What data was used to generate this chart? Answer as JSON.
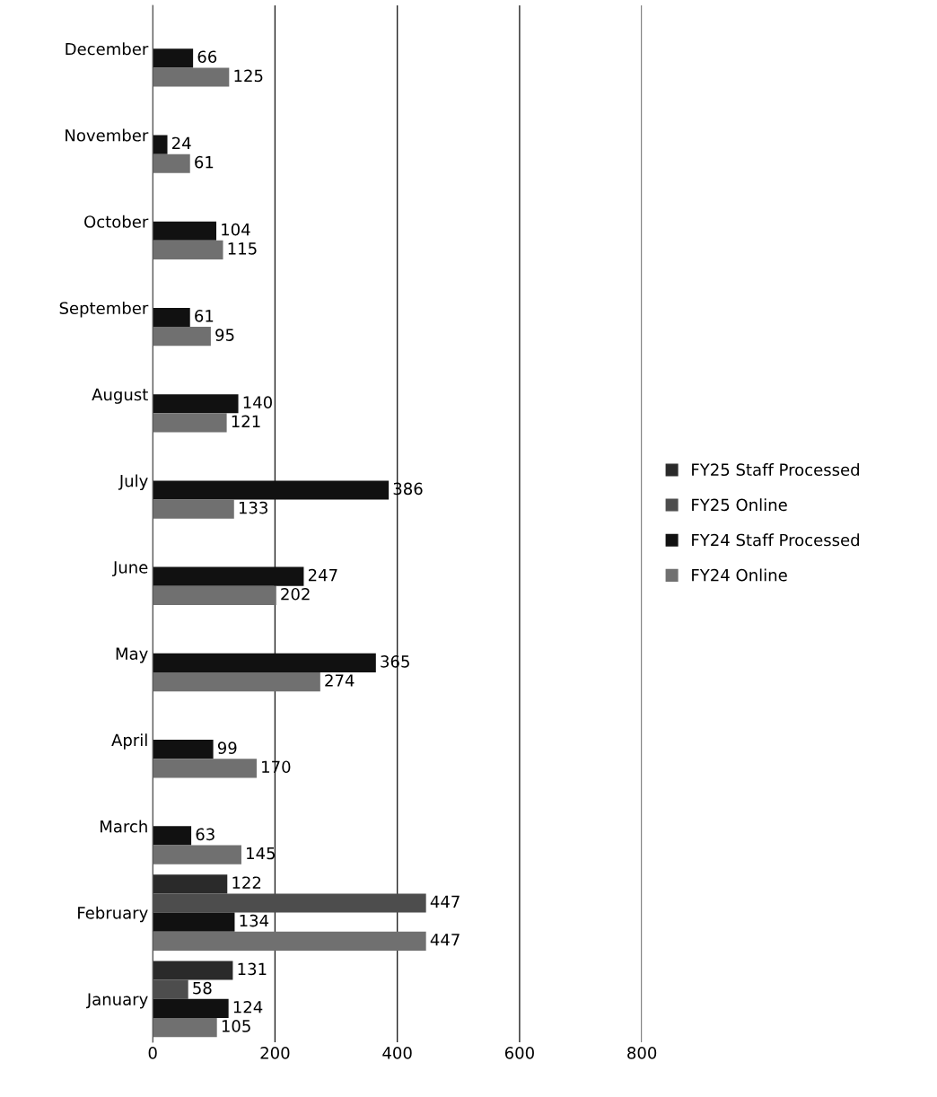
{
  "chart_data": {
    "type": "bar",
    "orientation": "horizontal",
    "data_labels": true,
    "grid": "x",
    "legend": "right",
    "categories": [
      "December",
      "November",
      "October",
      "September",
      "August",
      "July",
      "June",
      "May",
      "April",
      "March",
      "February",
      "January"
    ],
    "series": [
      {
        "name": "FY25 Staff Processed",
        "color": "#2a2a2a",
        "values": [
          null,
          null,
          null,
          null,
          null,
          null,
          null,
          null,
          null,
          null,
          122,
          131
        ]
      },
      {
        "name": "FY25 Online",
        "color": "#4d4d4d",
        "values": [
          null,
          null,
          null,
          null,
          null,
          null,
          null,
          null,
          null,
          null,
          447,
          58
        ]
      },
      {
        "name": "FY24 Staff Processed",
        "color": "#111111",
        "values": [
          66,
          24,
          104,
          61,
          140,
          386,
          247,
          365,
          99,
          63,
          134,
          124
        ]
      },
      {
        "name": "FY24 Online",
        "color": "#707070",
        "values": [
          125,
          61,
          115,
          95,
          121,
          133,
          202,
          274,
          170,
          145,
          447,
          105
        ]
      }
    ],
    "xlim": [
      0,
      800
    ],
    "xticks": [
      0,
      200,
      400,
      600,
      800
    ]
  }
}
